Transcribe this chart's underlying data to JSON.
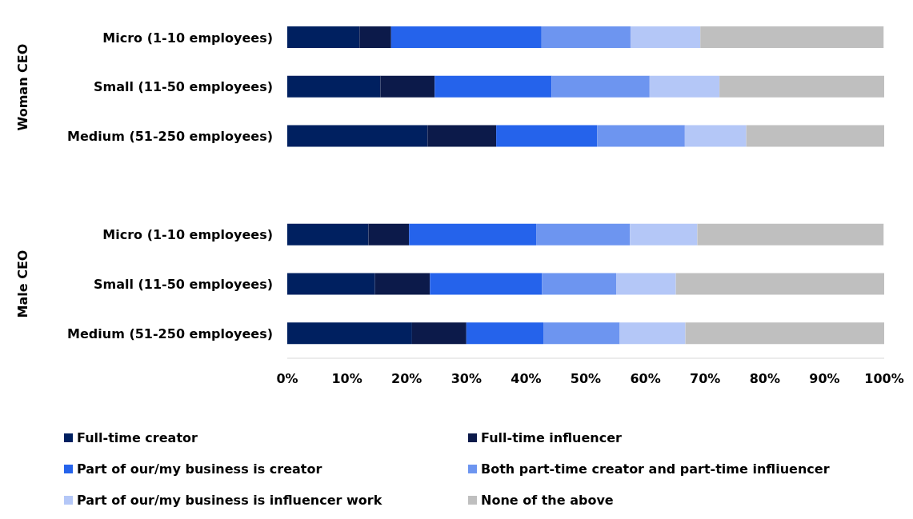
{
  "chart_data": {
    "type": "bar",
    "orientation": "horizontal",
    "stacked": true,
    "categories": [
      "Micro (1-10 employees)",
      "Small (11-50 employees)",
      "Medium (51-250 employees)",
      null,
      "Micro (1-10 employees)",
      "Small (11-50 employees)",
      "Medium (51-250 employees)"
    ],
    "annotations": [
      "Woman CEO",
      "Male CEO"
    ],
    "series": [
      {
        "name": "Full-time creator",
        "color": "#002060",
        "values": [
          12.1,
          15.6,
          23.5,
          null,
          13.6,
          14.7,
          20.9
        ]
      },
      {
        "name": "Full-time influencer",
        "color": "#0c1a4a",
        "values": [
          5.3,
          9.1,
          11.5,
          null,
          6.8,
          9.2,
          9.1
        ]
      },
      {
        "name": "Part of our/my business is creator",
        "color": "#2563eb",
        "values": [
          25.2,
          19.6,
          16.9,
          null,
          21.3,
          18.8,
          12.9
        ]
      },
      {
        "name": "Both part-time creator and part-time infliuencer",
        "color": "#6d95f0",
        "values": [
          14.9,
          16.4,
          14.7,
          null,
          15.7,
          12.4,
          12.8
        ]
      },
      {
        "name": "Part of our/my business is influencer work",
        "color": "#b4c7f7",
        "values": [
          11.7,
          11.7,
          10.3,
          null,
          11.3,
          10.0,
          11.0
        ]
      },
      {
        "name": "None of the above",
        "color": "#bfbfbf",
        "values": [
          30.7,
          27.6,
          23.2,
          null,
          31.2,
          34.9,
          33.3
        ]
      }
    ],
    "xlim": [
      0,
      100
    ],
    "xticks": [
      {
        "value": 0,
        "label": "0%"
      },
      {
        "value": 10,
        "label": "10%"
      },
      {
        "value": 20,
        "label": "20%"
      },
      {
        "value": 30,
        "label": "30%"
      },
      {
        "value": 40,
        "label": "40%"
      },
      {
        "value": 50,
        "label": "50%"
      },
      {
        "value": 60,
        "label": "60%"
      },
      {
        "value": 70,
        "label": "70%"
      },
      {
        "value": 80,
        "label": "80%"
      },
      {
        "value": 90,
        "label": "90%"
      },
      {
        "value": 100,
        "label": "100%"
      }
    ],
    "grid": false,
    "legend": "bottom"
  }
}
